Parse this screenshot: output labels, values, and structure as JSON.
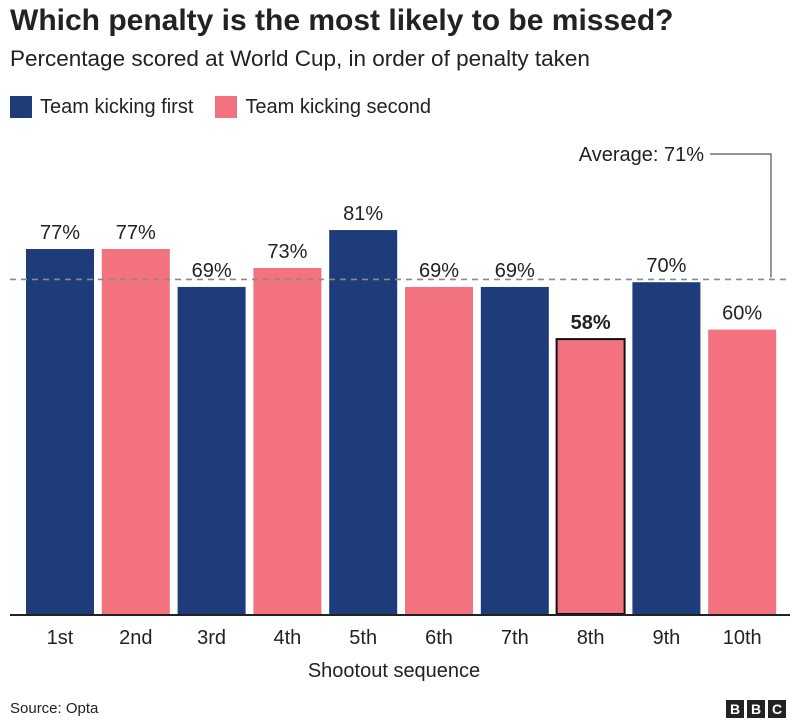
{
  "title": "Which penalty is the most likely to be missed?",
  "subtitle": "Percentage scored at World Cup, in order of penalty taken",
  "legend": [
    {
      "label": "Team kicking first",
      "color": "#1f3c7a"
    },
    {
      "label": "Team kicking second",
      "color": "#f2727f"
    }
  ],
  "source": "Source: Opta",
  "logo": [
    "B",
    "B",
    "C"
  ],
  "chart_data": {
    "type": "bar",
    "categories": [
      "1st",
      "2nd",
      "3rd",
      "4th",
      "5th",
      "6th",
      "7th",
      "8th",
      "9th",
      "10th"
    ],
    "values": [
      77,
      77,
      69,
      73,
      81,
      69,
      69,
      58,
      70,
      60
    ],
    "value_labels": [
      "77%",
      "77%",
      "69%",
      "73%",
      "81%",
      "69%",
      "69%",
      "58%",
      "70%",
      "60%"
    ],
    "series_by_bar": [
      "first",
      "second",
      "first",
      "second",
      "first",
      "second",
      "first",
      "second",
      "first",
      "second"
    ],
    "highlight_index": 7,
    "average": 71,
    "average_label": "Average: 71%",
    "xlabel": "Shootout sequence",
    "ylabel": "",
    "ylim": [
      0,
      100
    ],
    "grid": false
  }
}
